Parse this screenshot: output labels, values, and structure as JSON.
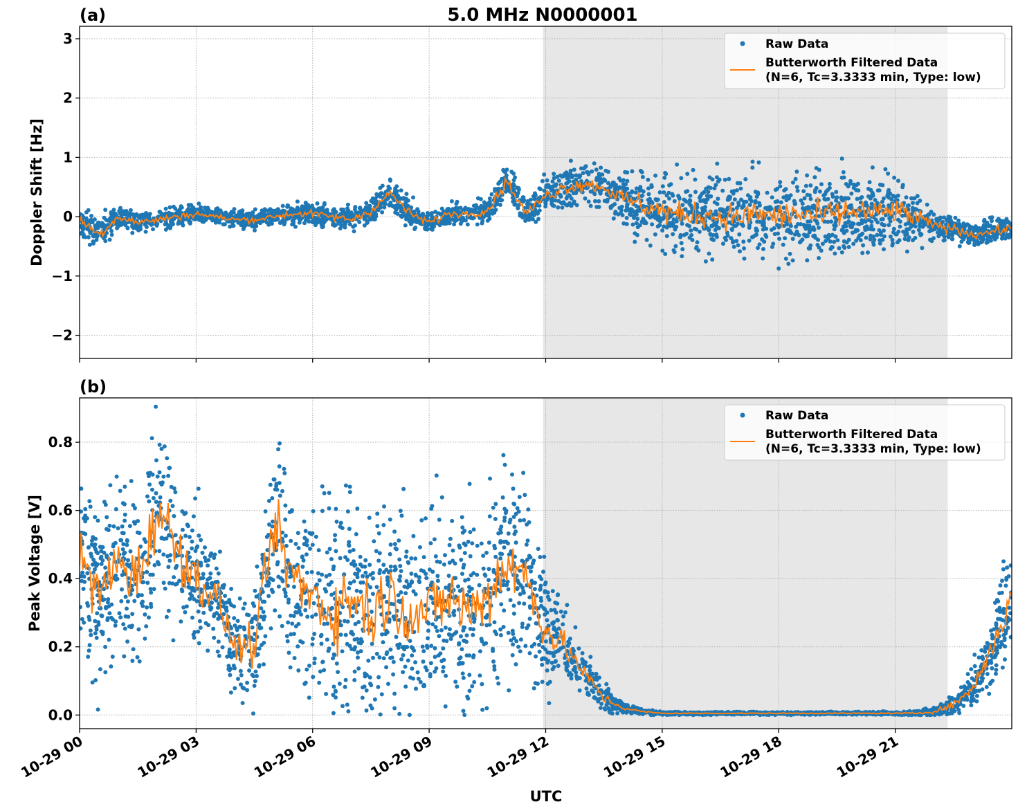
{
  "chart_data": [
    {
      "type": "scatter",
      "panel_label": "(a)",
      "title": "5.0 MHz N0000001",
      "xlabel": "",
      "ylabel": "Doppler Shift [Hz]",
      "xlim_hours": [
        0,
        24
      ],
      "ylim": [
        -2.39,
        3.21
      ],
      "yticks": [
        -2,
        -1,
        0,
        1,
        2,
        3
      ],
      "ytick_labels": [
        "−2",
        "−1",
        "0",
        "1",
        "2",
        "3"
      ],
      "grid": true,
      "shaded_region_hours": [
        11.93,
        22.35
      ],
      "legend": {
        "position": "top-right",
        "entries": [
          "Raw Data",
          "Butterworth Filtered Data",
          "(N=6, Tc=3.3333 min, Type: low)"
        ]
      },
      "x_hours": [
        0,
        0.5,
        1,
        1.5,
        2,
        2.5,
        3,
        3.5,
        4,
        4.5,
        5,
        5.5,
        6,
        6.5,
        7,
        7.5,
        8,
        8.5,
        9,
        9.5,
        10,
        10.5,
        11,
        11.5,
        12,
        12.5,
        13,
        13.5,
        14,
        14.5,
        15,
        15.5,
        16,
        16.5,
        17,
        17.5,
        18,
        18.5,
        19,
        19.5,
        20,
        20.5,
        21,
        21.5,
        22,
        22.5,
        23,
        23.5,
        24
      ],
      "series": [
        {
          "name": "Butterworth Filtered Data",
          "color": "#ff7f0e",
          "values": [
            -0.05,
            -0.3,
            0.0,
            -0.1,
            -0.05,
            0.0,
            0.05,
            0.0,
            -0.05,
            -0.05,
            0.0,
            0.05,
            0.05,
            0.0,
            -0.05,
            0.1,
            0.4,
            0.05,
            -0.1,
            0.05,
            0.05,
            0.1,
            0.6,
            0.05,
            0.35,
            0.5,
            0.55,
            0.5,
            0.3,
            0.2,
            0.1,
            0.0,
            0.05,
            0.0,
            0.0,
            0.05,
            0.0,
            0.05,
            0.0,
            0.05,
            0.1,
            0.05,
            0.1,
            0.0,
            -0.15,
            -0.2,
            -0.3,
            -0.25,
            -0.2
          ]
        },
        {
          "name": "Raw Data",
          "color": "#1f77b4",
          "raw_spread": [
            0.15,
            0.2,
            0.15,
            0.12,
            0.12,
            0.12,
            0.12,
            0.1,
            0.1,
            0.1,
            0.1,
            0.12,
            0.12,
            0.12,
            0.12,
            0.15,
            0.15,
            0.15,
            0.12,
            0.12,
            0.12,
            0.15,
            0.2,
            0.15,
            0.2,
            0.25,
            0.25,
            0.25,
            0.3,
            0.4,
            0.45,
            0.45,
            0.45,
            0.45,
            0.45,
            0.45,
            0.5,
            0.5,
            0.5,
            0.5,
            0.45,
            0.45,
            0.45,
            0.35,
            0.15,
            0.15,
            0.15,
            0.15,
            0.15
          ]
        }
      ]
    },
    {
      "type": "scatter",
      "panel_label": "(b)",
      "xlabel": "UTC",
      "ylabel": "Peak Voltage [V]",
      "xlim_hours": [
        0,
        24
      ],
      "ylim": [
        -0.04,
        0.93
      ],
      "yticks": [
        0.0,
        0.2,
        0.4,
        0.6,
        0.8
      ],
      "ytick_labels": [
        "0.0",
        "0.2",
        "0.4",
        "0.6",
        "0.8"
      ],
      "xticks_hours": [
        0,
        3,
        6,
        9,
        12,
        15,
        18,
        21
      ],
      "xtick_labels": [
        "10-29 00",
        "10-29 03",
        "10-29 06",
        "10-29 09",
        "10-29 12",
        "10-29 15",
        "10-29 18",
        "10-29 21"
      ],
      "grid": true,
      "shaded_region_hours": [
        11.93,
        22.35
      ],
      "legend": {
        "position": "top-right",
        "entries": [
          "Raw Data",
          "Butterworth Filtered Data",
          "(N=6, Tc=3.3333 min, Type: low)"
        ]
      },
      "x_hours": [
        0,
        0.5,
        1,
        1.5,
        2,
        2.5,
        3,
        3.5,
        4,
        4.5,
        5,
        5.5,
        6,
        6.5,
        7,
        7.5,
        8,
        8.5,
        9,
        9.5,
        10,
        10.5,
        11,
        11.5,
        12,
        12.5,
        13,
        13.5,
        14,
        14.5,
        15,
        15.5,
        16,
        16.5,
        17,
        17.5,
        18,
        18.5,
        19,
        19.5,
        20,
        20.5,
        21,
        21.5,
        22,
        22.5,
        23,
        23.5,
        24
      ],
      "series": [
        {
          "name": "Butterworth Filtered Data",
          "color": "#ff7f0e",
          "values": [
            0.45,
            0.35,
            0.45,
            0.4,
            0.6,
            0.5,
            0.4,
            0.35,
            0.2,
            0.2,
            0.55,
            0.4,
            0.35,
            0.3,
            0.35,
            0.3,
            0.35,
            0.3,
            0.3,
            0.35,
            0.3,
            0.35,
            0.45,
            0.4,
            0.25,
            0.2,
            0.12,
            0.05,
            0.02,
            0.01,
            0.005,
            0.005,
            0.005,
            0.005,
            0.005,
            0.005,
            0.005,
            0.005,
            0.005,
            0.005,
            0.005,
            0.005,
            0.005,
            0.005,
            0.01,
            0.03,
            0.08,
            0.2,
            0.35
          ]
        },
        {
          "name": "Raw Data",
          "color": "#1f77b4",
          "raw_spread": [
            0.18,
            0.18,
            0.18,
            0.2,
            0.18,
            0.18,
            0.15,
            0.12,
            0.1,
            0.12,
            0.18,
            0.2,
            0.2,
            0.22,
            0.22,
            0.22,
            0.2,
            0.2,
            0.2,
            0.2,
            0.2,
            0.2,
            0.2,
            0.2,
            0.12,
            0.08,
            0.05,
            0.03,
            0.01,
            0.005,
            0.003,
            0.003,
            0.003,
            0.003,
            0.003,
            0.003,
            0.003,
            0.003,
            0.003,
            0.003,
            0.003,
            0.003,
            0.003,
            0.005,
            0.01,
            0.02,
            0.04,
            0.08,
            0.12
          ]
        }
      ]
    }
  ]
}
